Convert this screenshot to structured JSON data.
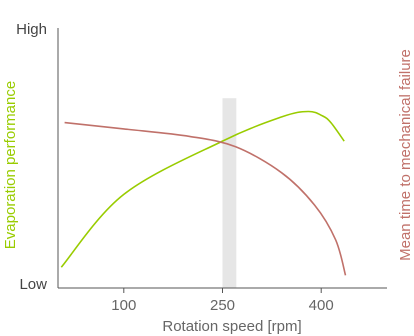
{
  "chart_data": {
    "type": "line",
    "title": "",
    "xlabel": "Rotation speed [rpm]",
    "ylabel_left": "Evaporation performance",
    "ylabel_right": "Mean time to mechanical failure",
    "y_top_label": "High",
    "y_bottom_label": "Low",
    "x_ticks": [
      100,
      250,
      400
    ],
    "x_tick_labels": [
      "100",
      "250",
      "400"
    ],
    "xlim": [
      0,
      500
    ],
    "ylim": [
      0,
      100
    ],
    "grid": false,
    "legend": "none",
    "highlight_band": [
      250,
      271
    ],
    "series": [
      {
        "axis": "left",
        "color": "#99cc00",
        "points": [
          [
            5,
            8
          ],
          [
            100,
            36
          ],
          [
            250,
            56.5
          ],
          [
            340,
            65.8
          ],
          [
            380,
            67.9
          ],
          [
            402,
            66.2
          ],
          [
            415,
            63.5
          ],
          [
            435,
            56.5
          ]
        ]
      },
      {
        "axis": "right",
        "color": "#c0716a",
        "points": [
          [
            10,
            63.6
          ],
          [
            100,
            61.2
          ],
          [
            200,
            58.3
          ],
          [
            270,
            54.3
          ],
          [
            340,
            44.3
          ],
          [
            390,
            31.9
          ],
          [
            422,
            18.5
          ],
          [
            437,
            4.9
          ]
        ]
      }
    ],
    "colors": {
      "axis": "#555555",
      "band": "#e6e6e6",
      "left_label": "#99cc00",
      "right_label": "#c0716a"
    }
  }
}
